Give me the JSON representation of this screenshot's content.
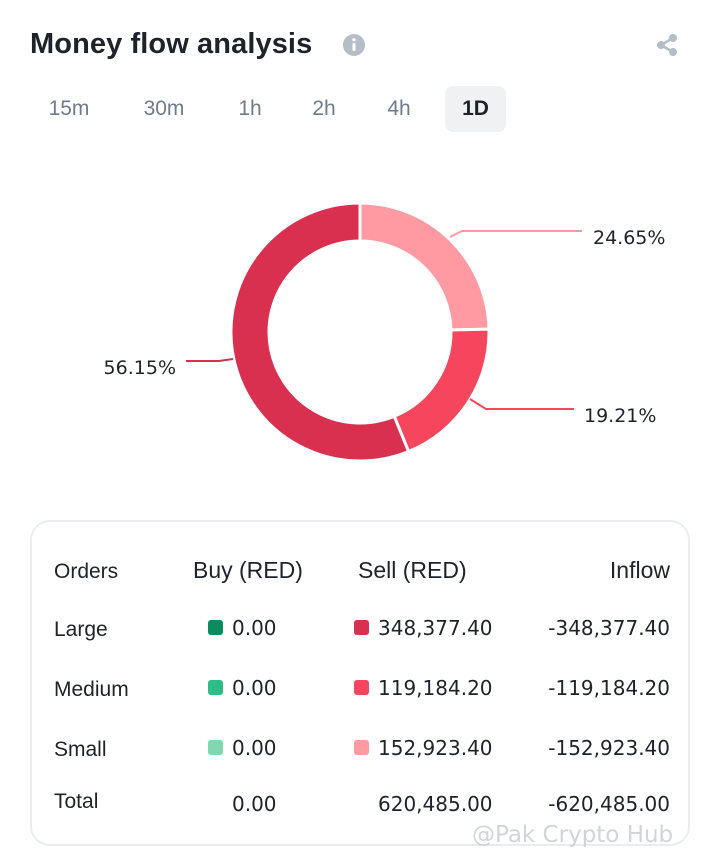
{
  "header": {
    "title": "Money flow analysis",
    "info_icon": "info-icon",
    "share_icon": "share-icon"
  },
  "tabs": [
    {
      "label": "15m",
      "active": false
    },
    {
      "label": "30m",
      "active": false
    },
    {
      "label": "1h",
      "active": false
    },
    {
      "label": "2h",
      "active": false
    },
    {
      "label": "4h",
      "active": false
    },
    {
      "label": "1D",
      "active": true
    }
  ],
  "chart_data": {
    "type": "pie",
    "labels": [
      "Large sell",
      "Medium sell",
      "Small sell"
    ],
    "values": [
      56.15,
      19.21,
      24.65
    ],
    "value_labels": [
      "56.15%",
      "19.21%",
      "24.65%"
    ],
    "colors": [
      "#d9304f",
      "#f6465d",
      "#ff9aa2"
    ]
  },
  "table": {
    "headers": {
      "orders": "Orders",
      "buy": "Buy (RED)",
      "sell": "Sell (RED)",
      "inflow": "Inflow"
    },
    "rows": [
      {
        "label": "Large",
        "buy": "0.00",
        "sell": "348,377.40",
        "inflow": "-348,377.40",
        "buy_color": "#0e8a5f",
        "sell_color": "#d9304f"
      },
      {
        "label": "Medium",
        "buy": "0.00",
        "sell": "119,184.20",
        "inflow": "-119,184.20",
        "buy_color": "#2ebd85",
        "sell_color": "#f6465d"
      },
      {
        "label": "Small",
        "buy": "0.00",
        "sell": "152,923.40",
        "inflow": "-152,923.40",
        "buy_color": "#7fd8b0",
        "sell_color": "#ff9aa2"
      },
      {
        "label": "Total",
        "buy": "0.00",
        "sell": "620,485.00",
        "inflow": "-620,485.00"
      }
    ]
  },
  "watermark": "@Pak Crypto Hub"
}
